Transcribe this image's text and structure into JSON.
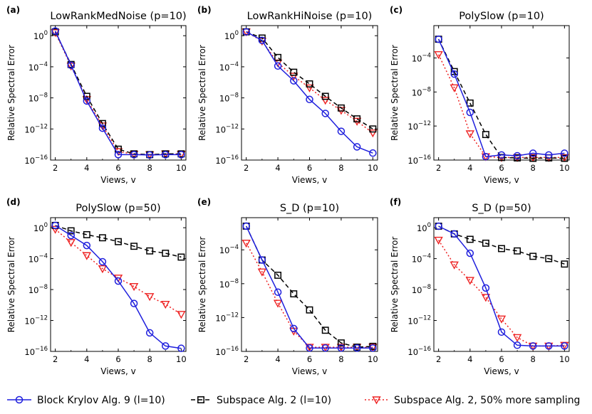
{
  "colors": {
    "blue": "#1f1fdd",
    "black": "#000000",
    "red": "#ee2222"
  },
  "legend": [
    {
      "key": "krylov",
      "label": "Block Krylov Alg. 9 (l=10)"
    },
    {
      "key": "subspace",
      "label": "Subspace Alg. 2 (l=10)"
    },
    {
      "key": "subspace_more",
      "label": "Subspace Alg. 2, 50% more sampling"
    }
  ],
  "chart_data": [
    {
      "type": "line",
      "letter": "(a)",
      "title": "LowRankMedNoise (p=10)",
      "xlabel": "Views, v",
      "ylabel": "Relative Spectral Error",
      "xlim": [
        1.7,
        10.3
      ],
      "ylim_log10": [
        -16,
        1.3
      ],
      "xticks": [
        2,
        4,
        6,
        8,
        10
      ],
      "yticks_log10": [
        0,
        -4,
        -8,
        -12,
        -16
      ],
      "x": [
        2,
        3,
        4,
        5,
        6,
        7,
        8,
        9,
        10
      ],
      "series": [
        {
          "key": "krylov",
          "log10_values": [
            0.6,
            -3.8,
            -8.4,
            -11.9,
            -15.3,
            -15.3,
            -15.35,
            -15.3,
            -15.3
          ]
        },
        {
          "key": "subspace",
          "log10_values": [
            0.5,
            -3.7,
            -7.8,
            -11.3,
            -14.6,
            -15.2,
            -15.3,
            -15.2,
            -15.2
          ]
        },
        {
          "key": "subspace_more",
          "log10_values": [
            0.4,
            -3.9,
            -8.2,
            -11.6,
            -14.9,
            -15.25,
            -15.3,
            -15.2,
            -15.25
          ]
        }
      ]
    },
    {
      "type": "line",
      "letter": "(b)",
      "title": "LowRankHiNoise (p=10)",
      "xlabel": "Views, v",
      "ylabel": "",
      "xlim": [
        1.7,
        10.3
      ],
      "ylim_log10": [
        -16,
        1.3
      ],
      "xticks": [
        2,
        4,
        6,
        8,
        10
      ],
      "yticks_log10": [
        0,
        -4,
        -8,
        -12,
        -16
      ],
      "x": [
        2,
        3,
        4,
        5,
        6,
        7,
        8,
        9,
        10
      ],
      "series": [
        {
          "key": "krylov",
          "log10_values": [
            0.5,
            -0.6,
            -3.9,
            -5.8,
            -8.2,
            -10.0,
            -12.3,
            -14.3,
            -15.1
          ]
        },
        {
          "key": "subspace",
          "log10_values": [
            0.5,
            -0.3,
            -2.8,
            -4.7,
            -6.2,
            -7.8,
            -9.3,
            -10.7,
            -12.0
          ]
        },
        {
          "key": "subspace_more",
          "log10_values": [
            0.5,
            -0.7,
            -3.5,
            -5.2,
            -6.7,
            -8.3,
            -9.6,
            -11.0,
            -12.5
          ]
        }
      ]
    },
    {
      "type": "line",
      "letter": "(c)",
      "title": "PolySlow (p=10)",
      "xlabel": "Views, v",
      "ylabel": "",
      "xlim": [
        1.7,
        10.3
      ],
      "ylim_log10": [
        -16,
        -0.2
      ],
      "xticks": [
        2,
        4,
        6,
        8,
        10
      ],
      "yticks_log10": [
        -4,
        -8,
        -12,
        -16
      ],
      "x": [
        2,
        3,
        4,
        5,
        6,
        7,
        8,
        9,
        10
      ],
      "series": [
        {
          "key": "krylov",
          "log10_values": [
            -1.8,
            -5.9,
            -10.4,
            -15.6,
            -15.4,
            -15.5,
            -15.2,
            -15.4,
            -15.2
          ]
        },
        {
          "key": "subspace",
          "log10_values": [
            -1.8,
            -5.6,
            -9.3,
            -13.0,
            -15.7,
            -15.75,
            -15.8,
            -15.75,
            -15.8
          ]
        },
        {
          "key": "subspace_more",
          "log10_values": [
            -3.6,
            -7.5,
            -12.9,
            -15.6,
            -15.7,
            -15.7,
            -15.7,
            -15.7,
            -15.7
          ]
        }
      ]
    },
    {
      "type": "line",
      "letter": "(d)",
      "title": "PolySlow (p=50)",
      "xlabel": "Views, v",
      "ylabel": "Relative Spectral Error",
      "xlim": [
        1.7,
        10.3
      ],
      "ylim_log10": [
        -16,
        1.3
      ],
      "xticks": [
        2,
        4,
        6,
        8,
        10
      ],
      "yticks_log10": [
        0,
        -4,
        -8,
        -12,
        -16
      ],
      "x": [
        2,
        3,
        4,
        5,
        6,
        7,
        8,
        9,
        10
      ],
      "series": [
        {
          "key": "krylov",
          "log10_values": [
            0.3,
            -1.0,
            -2.3,
            -4.4,
            -6.9,
            -9.8,
            -13.6,
            -15.3,
            -15.6
          ]
        },
        {
          "key": "subspace",
          "log10_values": [
            0.3,
            -0.4,
            -0.9,
            -1.3,
            -1.8,
            -2.4,
            -3.0,
            -3.3,
            -3.8
          ]
        },
        {
          "key": "subspace_more",
          "log10_values": [
            -0.2,
            -1.9,
            -3.6,
            -5.3,
            -6.5,
            -7.6,
            -8.9,
            -9.9,
            -11.2
          ]
        }
      ]
    },
    {
      "type": "line",
      "letter": "(e)",
      "title": "S_D (p=10)",
      "xlabel": "Views, v",
      "ylabel": "",
      "xlim": [
        1.7,
        10.3
      ],
      "ylim_log10": [
        -16,
        -0.2
      ],
      "xticks": [
        2,
        4,
        6,
        8,
        10
      ],
      "yticks_log10": [
        -4,
        -8,
        -12,
        -16
      ],
      "x": [
        2,
        3,
        4,
        5,
        6,
        7,
        8,
        9,
        10
      ],
      "series": [
        {
          "key": "krylov",
          "log10_values": [
            -1.2,
            -5.2,
            -9.0,
            -13.3,
            -15.6,
            -15.6,
            -15.6,
            -15.6,
            -15.6
          ]
        },
        {
          "key": "subspace",
          "log10_values": [
            -1.2,
            -5.2,
            -7.0,
            -9.2,
            -11.1,
            -13.5,
            -15.0,
            -15.5,
            -15.4
          ]
        },
        {
          "key": "subspace_more",
          "log10_values": [
            -3.2,
            -6.6,
            -10.3,
            -13.6,
            -15.5,
            -15.5,
            -15.5,
            -15.5,
            -15.5
          ]
        }
      ]
    },
    {
      "type": "line",
      "letter": "(f)",
      "title": "S_D (p=50)",
      "xlabel": "Views, v",
      "ylabel": "",
      "xlim": [
        1.7,
        10.3
      ],
      "ylim_log10": [
        -16,
        1.3
      ],
      "xticks": [
        2,
        4,
        6,
        8,
        10
      ],
      "yticks_log10": [
        0,
        -4,
        -8,
        -12,
        -16
      ],
      "x": [
        2,
        3,
        4,
        5,
        6,
        7,
        8,
        9,
        10
      ],
      "series": [
        {
          "key": "krylov",
          "log10_values": [
            0.2,
            -0.8,
            -3.3,
            -7.8,
            -13.5,
            -15.2,
            -15.3,
            -15.3,
            -15.3
          ]
        },
        {
          "key": "subspace",
          "log10_values": [
            0.2,
            -0.8,
            -1.5,
            -2.0,
            -2.7,
            -3.0,
            -3.7,
            -4.0,
            -4.7
          ]
        },
        {
          "key": "subspace_more",
          "log10_values": [
            -1.6,
            -4.8,
            -6.8,
            -9.0,
            -11.8,
            -14.2,
            -15.3,
            -15.3,
            -15.2
          ]
        }
      ]
    }
  ]
}
